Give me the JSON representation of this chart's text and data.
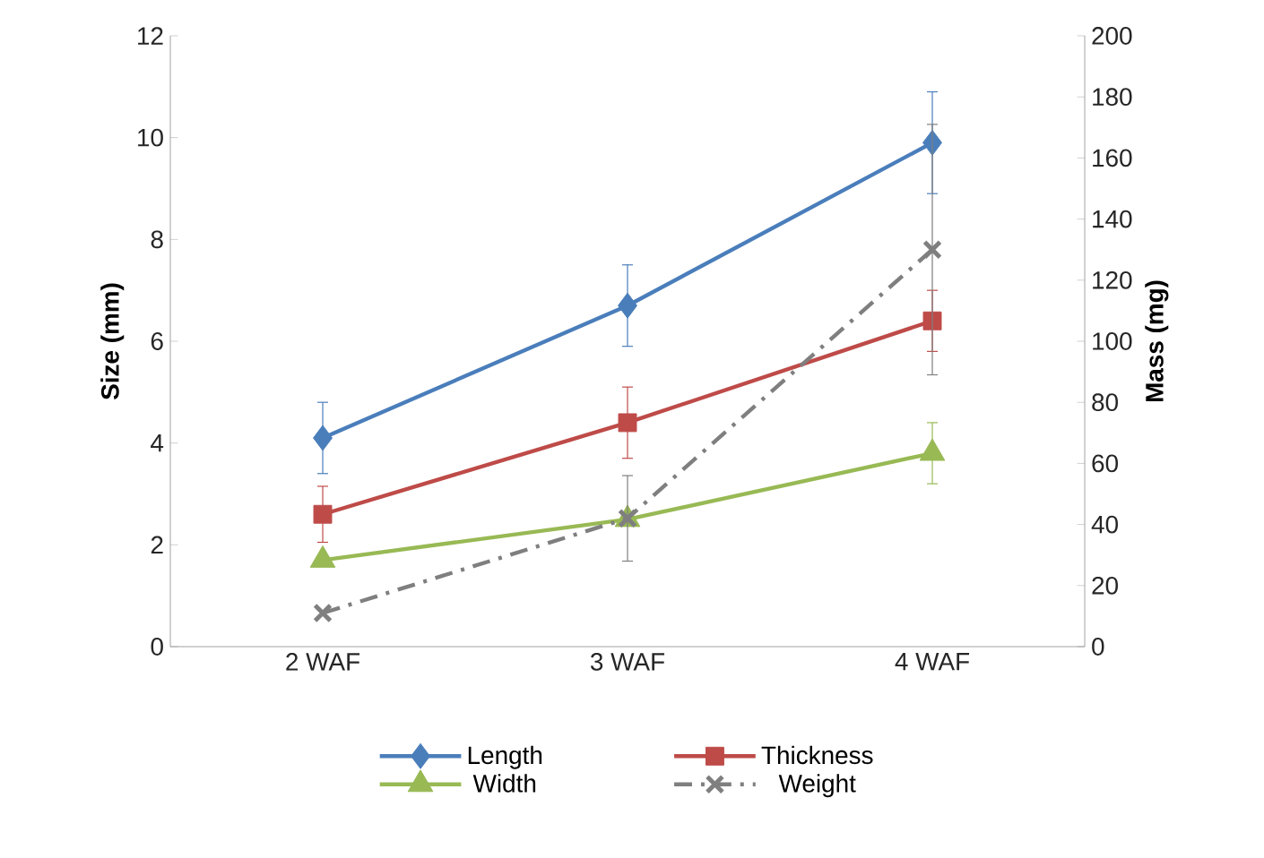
{
  "chart_data": {
    "type": "line",
    "ylabel": "Size (mm)",
    "y2label": "Mass (mg)",
    "categories": [
      "2 WAF",
      "3 WAF",
      "4 WAF"
    ],
    "ylim": [
      0,
      12
    ],
    "yticks": [
      0,
      2,
      4,
      6,
      8,
      10,
      12
    ],
    "y2lim": [
      0,
      200
    ],
    "y2ticks": [
      0,
      20,
      40,
      60,
      80,
      100,
      120,
      140,
      160,
      180,
      200
    ],
    "legend": "bottom",
    "grid": false,
    "series": [
      {
        "name": "Length",
        "color": "#4a7ebb",
        "marker": "diamond",
        "line_style": "solid",
        "values": [
          4.1,
          6.7,
          9.9
        ],
        "errors": [
          0.7,
          0.8,
          1.0
        ]
      },
      {
        "name": "Thickness",
        "color": "#be4b48",
        "marker": "square",
        "line_style": "solid",
        "values": [
          2.6,
          4.4,
          6.4
        ],
        "errors": [
          0.55,
          0.7,
          0.6
        ]
      },
      {
        "name": "Width",
        "color": "#98b954",
        "marker": "triangle",
        "line_style": "solid",
        "values": [
          1.7,
          2.5,
          3.8
        ],
        "errors": [
          null,
          null,
          0.6
        ]
      },
      {
        "name": "Weight",
        "color": "#7f7f7f",
        "marker": "cross",
        "line_style": "dashed",
        "axis": "y2",
        "values": [
          11,
          42,
          130
        ],
        "errors": [
          null,
          14,
          41
        ]
      }
    ]
  }
}
